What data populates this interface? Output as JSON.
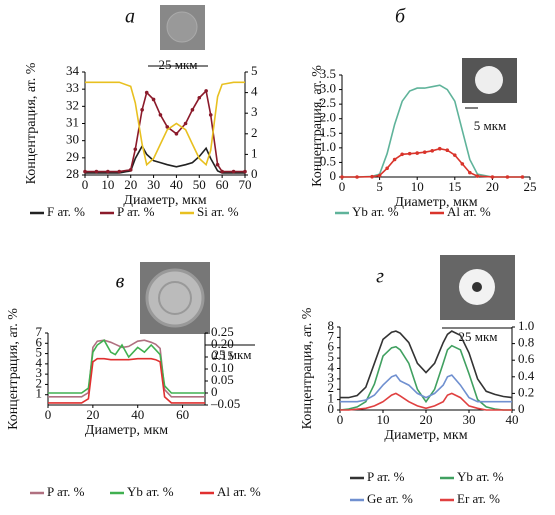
{
  "chart_data": [
    {
      "type": "line",
      "title": "а",
      "xlabel": "Диаметр, мкм",
      "ylabel": "Концентрация, ат. %",
      "annotations": [
        "25 мкм"
      ],
      "xlim": [
        0,
        70
      ],
      "xticks": [
        0,
        10,
        20,
        30,
        40,
        50,
        60,
        70
      ],
      "ylim": [
        28,
        34
      ],
      "yticks": [
        28,
        29,
        30,
        31,
        32,
        33,
        34
      ],
      "y2lim": [
        0,
        5
      ],
      "y2ticks": [
        0,
        1,
        2,
        3,
        4,
        5
      ],
      "x": [
        0,
        5,
        10,
        15,
        20,
        22,
        25,
        27,
        30,
        33,
        36,
        40,
        44,
        47,
        50,
        53,
        55,
        58,
        60,
        65,
        70
      ],
      "series": [
        {
          "name": "F ат. %",
          "color": "#222222",
          "axis": "y2",
          "values": [
            0.1,
            0.1,
            0.1,
            0.1,
            0.2,
            0.8,
            1.4,
            1,
            0.7,
            0.6,
            0.5,
            0.4,
            0.5,
            0.6,
            0.9,
            1.3,
            0.8,
            0.2,
            0.1,
            0.1,
            0.1
          ]
        },
        {
          "name": "P ат. %",
          "color": "#8b1a2a",
          "markers": true,
          "values": [
            28.2,
            28.2,
            28.2,
            28.2,
            28.3,
            29.5,
            31.8,
            32.8,
            32.4,
            31.5,
            30.8,
            30.4,
            31,
            31.8,
            32.5,
            32.9,
            31.5,
            28.6,
            28.2,
            28.2,
            28.2
          ]
        },
        {
          "name": "Si ат. %",
          "color": "#e8c020",
          "axis": "y2",
          "values": [
            4.5,
            4.5,
            4.5,
            4.5,
            4.3,
            3.5,
            1.5,
            0.5,
            0.8,
            1.5,
            2.2,
            2.5,
            2.2,
            1.5,
            0.8,
            0.5,
            1.2,
            3.8,
            4.4,
            4.5,
            4.5
          ]
        }
      ]
    },
    {
      "type": "line",
      "title": "б",
      "xlabel": "Диаметр, мкм",
      "ylabel": "Концентрация, ат. %",
      "annotations": [
        "5 мкм"
      ],
      "xlim": [
        0,
        25
      ],
      "xticks": [
        0,
        5,
        10,
        15,
        20,
        25
      ],
      "ylim": [
        0,
        3.5
      ],
      "yticks": [
        0,
        0.5,
        {
          "value": 1,
          "label": "1.0"
        },
        1.5,
        {
          "value": 2,
          "label": "2.0"
        },
        2.5,
        {
          "value": 3,
          "label": "3.0"
        },
        3.5
      ],
      "x": [
        0,
        2,
        4,
        5,
        6,
        7,
        8,
        9,
        10,
        11,
        12,
        13,
        14,
        15,
        16,
        17,
        18,
        20,
        22,
        24
      ],
      "series": [
        {
          "name": "Yb ат. %",
          "color": "#5fb39a",
          "values": [
            0,
            0,
            0.02,
            0.1,
            0.8,
            1.8,
            2.6,
            2.95,
            3.05,
            3.05,
            3.1,
            3.15,
            3.0,
            2.6,
            1.6,
            0.6,
            0.1,
            0,
            0,
            0
          ]
        },
        {
          "name": "Al ат. %",
          "color": "#d9342b",
          "markers": true,
          "values": [
            0,
            0,
            0.01,
            0.05,
            0.3,
            0.6,
            0.78,
            0.8,
            0.82,
            0.85,
            0.9,
            0.97,
            0.92,
            0.75,
            0.45,
            0.15,
            0.03,
            0,
            0,
            0
          ]
        }
      ]
    },
    {
      "type": "line",
      "title": "в",
      "xlabel": "Диаметр, мкм",
      "ylabel": "Концентрация, ат. %",
      "annotations": [
        "25 мкм"
      ],
      "xlim": [
        0,
        70
      ],
      "xticks": [
        0,
        20,
        40,
        60
      ],
      "ylim": [
        0,
        7
      ],
      "yticks": [
        1,
        2,
        3,
        4,
        5,
        6,
        7
      ],
      "y2lim": [
        -0.05,
        0.25
      ],
      "y2ticks": [
        {
          "value": -0.05,
          "label": "–0.05"
        },
        0,
        0.05,
        {
          "value": 0.1,
          "label": "0.10"
        },
        0.15,
        {
          "value": 0.2,
          "label": "0.20"
        },
        0.25
      ],
      "x": [
        0,
        5,
        10,
        15,
        18,
        20,
        22,
        25,
        28,
        30,
        33,
        36,
        40,
        43,
        46,
        48,
        50,
        52,
        55,
        60,
        65,
        70
      ],
      "series": [
        {
          "name": "P ат. %",
          "color": "#b07080",
          "values": [
            0.8,
            0.8,
            0.8,
            0.8,
            1.2,
            5.6,
            6.2,
            6.3,
            6.1,
            5.9,
            5.6,
            5.7,
            6.2,
            6.3,
            6.1,
            5.9,
            5.5,
            1.5,
            0.8,
            0.8,
            0.8,
            0.8
          ]
        },
        {
          "name": "Yb ат. %",
          "color": "#40b050",
          "axis": "y2",
          "values": [
            0,
            0,
            0,
            0,
            0.02,
            0.17,
            0.2,
            0.22,
            0.17,
            0.16,
            0.2,
            0.15,
            0.19,
            0.17,
            0.2,
            0.18,
            0.16,
            0.03,
            0,
            0,
            0,
            0
          ]
        },
        {
          "name": "Al ат. %",
          "color": "#e03030",
          "values": [
            0.2,
            0.2,
            0.2,
            0.2,
            0.6,
            4.2,
            4.5,
            4.5,
            4.4,
            4.4,
            4.4,
            4.4,
            4.5,
            4.5,
            4.5,
            4.4,
            4.2,
            0.8,
            0.2,
            0.2,
            0.2,
            0.2
          ]
        }
      ]
    },
    {
      "type": "line",
      "title": "г",
      "xlabel": "Диаметр, мкм",
      "ylabel": "Концентрация, ат. %",
      "annotations": [
        "25 мкм"
      ],
      "xlim": [
        0,
        40
      ],
      "xticks": [
        0,
        10,
        20,
        30,
        40
      ],
      "ylim": [
        0,
        8
      ],
      "yticks": [
        0,
        1,
        2,
        3,
        4,
        5,
        6,
        7,
        8
      ],
      "y2lim": [
        0,
        1
      ],
      "y2ticks": [
        0,
        0.2,
        0.4,
        0.6,
        0.8,
        {
          "value": 1,
          "label": "1.0"
        }
      ],
      "x": [
        0,
        2,
        4,
        6,
        8,
        10,
        12,
        13,
        14,
        16,
        18,
        20,
        22,
        24,
        25,
        26,
        28,
        30,
        32,
        34,
        36,
        38,
        40
      ],
      "series": [
        {
          "name": "P ат. %",
          "color": "#333333",
          "values": [
            1.2,
            1.2,
            1.4,
            2.2,
            4.5,
            6.8,
            7.5,
            7.6,
            7.4,
            6.5,
            4.5,
            3.6,
            4.5,
            6.5,
            7.3,
            7.6,
            7.2,
            5.5,
            3,
            1.8,
            1.5,
            1.3,
            1.2
          ]
        },
        {
          "name": "Yb ат. %",
          "color": "#40a060",
          "values": [
            0,
            0.1,
            0.3,
            0.8,
            2.5,
            5.2,
            6,
            6.1,
            5.8,
            4.5,
            2,
            0.8,
            2,
            4.5,
            5.8,
            6.2,
            5.8,
            3.5,
            1,
            0.3,
            0.1,
            0,
            0
          ]
        },
        {
          "name": "Ge ат. %",
          "color": "#7090d0",
          "axis": "y2",
          "values": [
            0.1,
            0.1,
            0.1,
            0.12,
            0.18,
            0.3,
            0.4,
            0.42,
            0.35,
            0.3,
            0.2,
            0.15,
            0.2,
            0.3,
            0.4,
            0.42,
            0.3,
            0.15,
            0.1,
            0.1,
            0.1,
            0.1,
            0.1
          ]
        },
        {
          "name": "Er ат. %",
          "color": "#e04040",
          "axis": "y2",
          "values": [
            0,
            0,
            0.01,
            0.02,
            0.05,
            0.1,
            0.18,
            0.2,
            0.17,
            0.1,
            0.05,
            0.02,
            0.05,
            0.1,
            0.18,
            0.2,
            0.15,
            0.05,
            0.02,
            0,
            0,
            0,
            0
          ]
        }
      ]
    }
  ]
}
